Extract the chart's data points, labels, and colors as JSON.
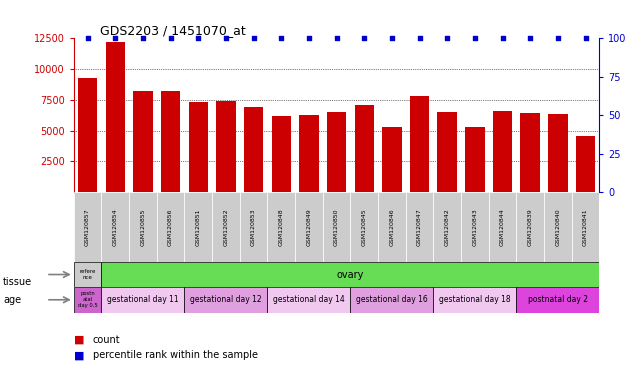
{
  "title": "GDS2203 / 1451070_at",
  "samples": [
    "GSM120857",
    "GSM120854",
    "GSM120855",
    "GSM120856",
    "GSM120851",
    "GSM120852",
    "GSM120853",
    "GSM120848",
    "GSM120849",
    "GSM120850",
    "GSM120845",
    "GSM120846",
    "GSM120847",
    "GSM120842",
    "GSM120843",
    "GSM120844",
    "GSM120839",
    "GSM120840",
    "GSM120841"
  ],
  "counts": [
    9300,
    12200,
    8200,
    8250,
    7350,
    7450,
    6900,
    6200,
    6300,
    6500,
    7050,
    5300,
    7850,
    6500,
    5300,
    6600,
    6400,
    6350,
    4600
  ],
  "percentiles": [
    100,
    100,
    100,
    100,
    100,
    100,
    100,
    100,
    100,
    100,
    100,
    100,
    100,
    100,
    100,
    100,
    100,
    100,
    100
  ],
  "bar_color": "#cc0000",
  "dot_color": "#0000cc",
  "ylim_left": [
    0,
    12500
  ],
  "ylim_right": [
    0,
    100
  ],
  "yticks_left": [
    2500,
    5000,
    7500,
    10000,
    12500
  ],
  "yticks_right": [
    0,
    25,
    50,
    75,
    100
  ],
  "sample_cell_color": "#cccccc",
  "tissue_row": {
    "first_label": "refere\nnce",
    "first_color": "#cccccc",
    "second_label": "ovary",
    "second_color": "#66dd55"
  },
  "age_row": {
    "first_label": "postn\natal\nday 0.5",
    "first_color": "#cc66cc",
    "groups": [
      {
        "label": "gestational day 11",
        "color": "#f0c8f0",
        "size": 3
      },
      {
        "label": "gestational day 12",
        "color": "#e0a0e0",
        "size": 3
      },
      {
        "label": "gestational day 14",
        "color": "#f0c8f0",
        "size": 3
      },
      {
        "label": "gestational day 16",
        "color": "#e0a0e0",
        "size": 3
      },
      {
        "label": "gestational day 18",
        "color": "#f0c8f0",
        "size": 3
      },
      {
        "label": "postnatal day 2",
        "color": "#dd44dd",
        "size": 3
      }
    ]
  },
  "age_first_size": 1,
  "background_color": "#ffffff",
  "left_axis_color": "#cc0000",
  "right_axis_color": "#0000cc"
}
